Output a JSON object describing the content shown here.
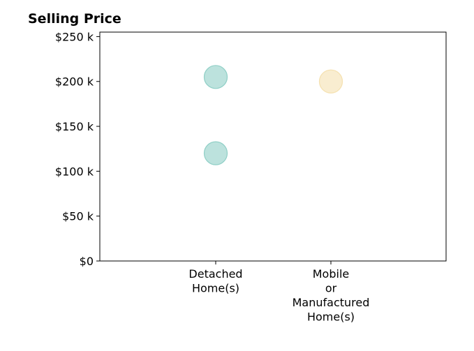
{
  "chart_data": {
    "type": "scatter",
    "title": "Selling Price",
    "xlabel": "",
    "ylabel": "",
    "categories": [
      [
        "Detached",
        "Home(s)"
      ],
      [
        "Mobile",
        "or",
        "Manufactured",
        "Home(s)"
      ]
    ],
    "points": [
      {
        "category_index": 0,
        "y": 205000,
        "color": "#8fcfc6"
      },
      {
        "category_index": 0,
        "y": 120000,
        "color": "#8fcfc6"
      },
      {
        "category_index": 1,
        "y": 200000,
        "color": "#f5e1b0"
      }
    ],
    "ylim": [
      0,
      255000
    ],
    "yticks": [
      {
        "value": 0,
        "label": "$0"
      },
      {
        "value": 50000,
        "label": "$50 k"
      },
      {
        "value": 100000,
        "label": "$100 k"
      },
      {
        "value": 150000,
        "label": "$150 k"
      },
      {
        "value": 200000,
        "label": "$200 k"
      },
      {
        "value": 250000,
        "label": "$250 k"
      }
    ],
    "grid": false,
    "legend": "none"
  }
}
